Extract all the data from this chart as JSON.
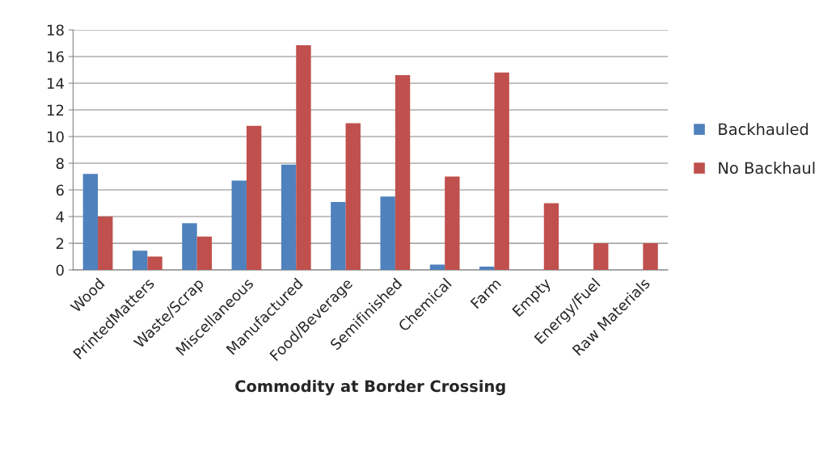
{
  "chart_data": {
    "type": "bar",
    "xlabel": "Commodity at Border Crossing",
    "categories": [
      "Wood",
      "PrintedMatters",
      "Waste/Scrap",
      "Miscellaneous",
      "Manufactured",
      "Food/Beverage",
      "Semifinished",
      "Chemical",
      "Farm",
      "Empty",
      "Energy/Fuel",
      "Raw Materials"
    ],
    "series": [
      {
        "name": "Backhauled",
        "color": "#4f81bd",
        "values": [
          7.2,
          1.45,
          3.5,
          6.7,
          7.9,
          5.1,
          5.5,
          0.4,
          0.25,
          null,
          null,
          null
        ]
      },
      {
        "name": "No Backhaul",
        "color": "#c0504d",
        "values": [
          4.0,
          1.0,
          2.5,
          10.8,
          16.85,
          11.0,
          14.6,
          7.0,
          14.8,
          5.0,
          2.0,
          2.0
        ]
      }
    ],
    "ylim": [
      0,
      18
    ],
    "yticks": [
      0,
      2,
      4,
      6,
      8,
      10,
      12,
      14,
      16,
      18
    ],
    "grid": "y",
    "legend": "right"
  }
}
